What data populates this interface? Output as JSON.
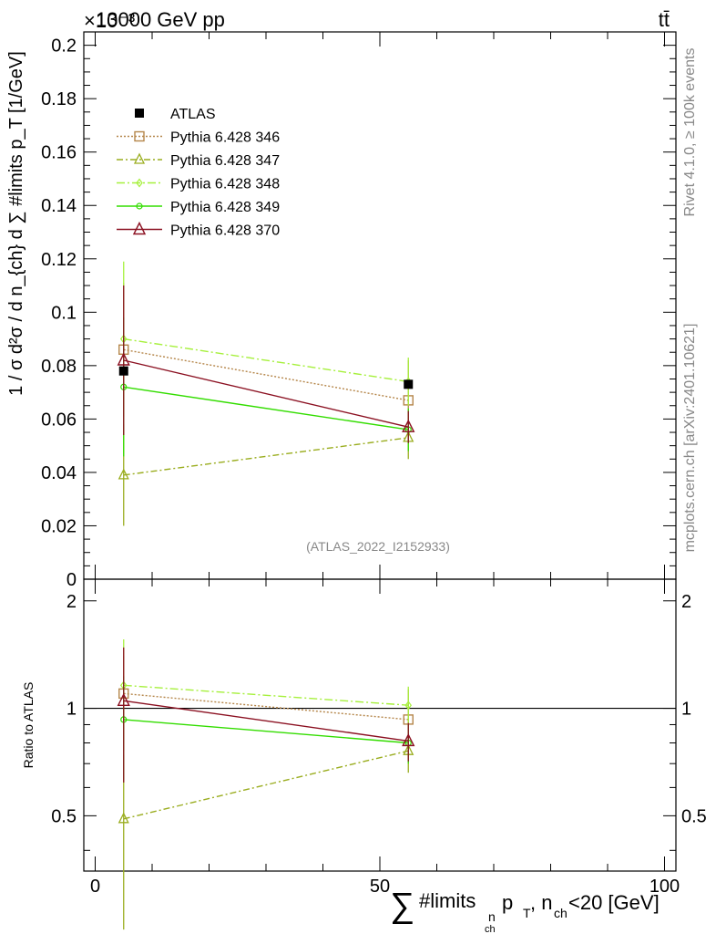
{
  "chart_data": {
    "type": "line",
    "header": {
      "energy": "13000 GeV pp",
      "process": "tt̄",
      "exponent": "×10⁻³"
    },
    "side_label_top": "Rivet 4.1.0, ≥ 100k events",
    "side_label_bottom": "mcplots.cern.ch [arXiv:2401.10621]",
    "analysis": "(ATLAS_2022_I2152933)",
    "xlabel": {
      "sum": "∑",
      "main": "#limits",
      "sub": "n",
      "subsub": "ch",
      "rest": " p",
      "rest_sub": "T",
      "tail": ", n",
      "tail_sub": "ch",
      "end": " <20 [GeV]"
    },
    "ylabel": "1 / σ d²σ / d n_{ch} d ∑ #limits  p_T  [1/GeV]",
    "ylabel_ratio": "Ratio to ATLAS",
    "xlim": [
      -2,
      102
    ],
    "ylim": [
      0,
      0.205
    ],
    "ratio_ylim": [
      0.35,
      2.3
    ],
    "x_ticks": [
      "0",
      "50",
      "100"
    ],
    "x_tick_values": [
      0,
      50,
      100
    ],
    "y_ticks": [
      "0",
      "0.02",
      "0.04",
      "0.06",
      "0.08",
      "0.1",
      "0.12",
      "0.14",
      "0.16",
      "0.18",
      "0.2"
    ],
    "y_tick_values": [
      0,
      0.02,
      0.04,
      0.06,
      0.08,
      0.1,
      0.12,
      0.14,
      0.16,
      0.18,
      0.2
    ],
    "ratio_ticks": [
      "0.5",
      "1",
      "2"
    ],
    "ratio_tick_values": [
      0.5,
      1,
      2
    ],
    "x": [
      5,
      55
    ],
    "data": {
      "name": "ATLAS",
      "values": [
        0.078,
        0.073
      ],
      "color": "#000000"
    },
    "series": [
      {
        "name": "Pythia 6.428 346",
        "values": [
          0.086,
          0.067
        ],
        "err": [
          0.025,
          0.015
        ],
        "ratio": [
          1.1,
          0.93
        ],
        "ratio_err": [
          0.3,
          0.2
        ],
        "color": "#b5864a",
        "dash": "2,2",
        "marker": "square"
      },
      {
        "name": "Pythia 6.428 347",
        "values": [
          0.039,
          0.053
        ],
        "err": [
          0.019,
          0.008
        ],
        "ratio": [
          0.49,
          0.76
        ],
        "ratio_err": [
          0.25,
          0.1
        ],
        "color": "#9aad1f",
        "dash": "7,3,2,3",
        "marker": "triangle"
      },
      {
        "name": "Pythia 6.428 348",
        "values": [
          0.09,
          0.074
        ],
        "err": [
          0.029,
          0.009
        ],
        "ratio": [
          1.16,
          1.02
        ],
        "ratio_err": [
          0.4,
          0.13
        ],
        "color": "#a6f03c",
        "dash": "9,3,2,3",
        "marker": "diamond"
      },
      {
        "name": "Pythia 6.428 349",
        "values": [
          0.072,
          0.056
        ],
        "err": [
          0.026,
          0.008
        ],
        "ratio": [
          0.93,
          0.8
        ],
        "ratio_err": [
          0.3,
          0.1
        ],
        "color": "#33dd00",
        "dash": "",
        "marker": "circle"
      },
      {
        "name": "Pythia 6.428 370",
        "values": [
          0.082,
          0.057
        ],
        "err": [
          0.028,
          0.006
        ],
        "ratio": [
          1.05,
          0.81
        ],
        "ratio_err": [
          0.43,
          0.1
        ],
        "color": "#8b1021",
        "dash": "",
        "marker": "triangle-big"
      }
    ]
  }
}
